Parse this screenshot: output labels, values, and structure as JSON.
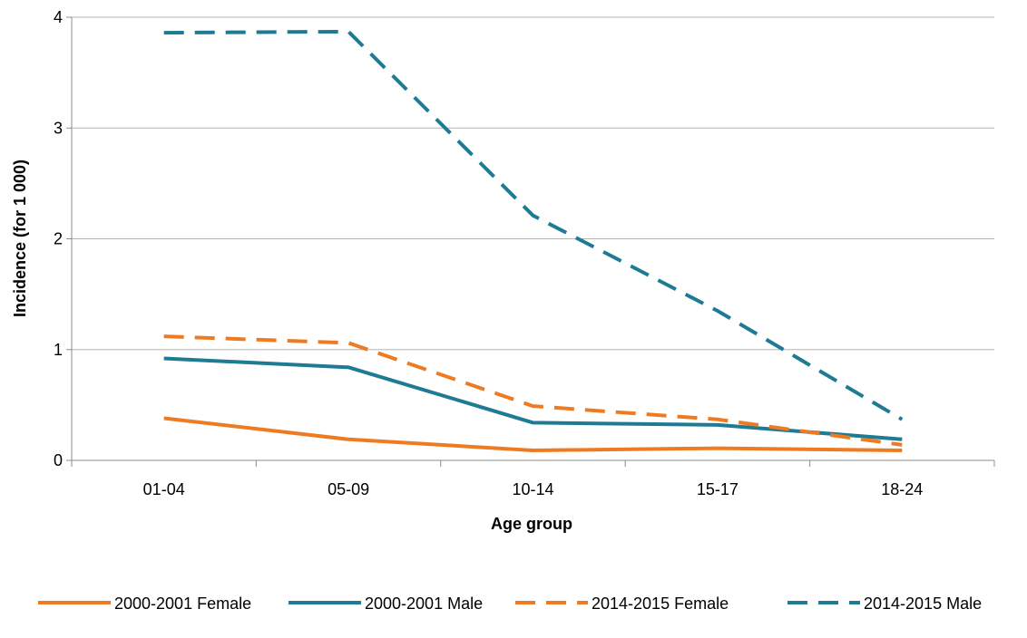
{
  "chart_data": {
    "type": "line",
    "title": "",
    "xlabel": "Age group",
    "ylabel": "Incidence (for 1 000)",
    "categories": [
      "01-04",
      "05-09",
      "10-14",
      "15-17",
      "18-24"
    ],
    "ylim": [
      0,
      4
    ],
    "yticks": [
      0,
      1,
      2,
      3,
      4
    ],
    "grid": "horizontal",
    "legend_position": "bottom",
    "series": [
      {
        "name": "2000-2001 Female",
        "values": [
          0.38,
          0.19,
          0.09,
          0.11,
          0.09
        ],
        "color": "#ee7b22",
        "dash": "solid"
      },
      {
        "name": "2000-2001 Male",
        "values": [
          0.92,
          0.84,
          0.34,
          0.32,
          0.19
        ],
        "color": "#1d7b93",
        "dash": "solid"
      },
      {
        "name": "2014-2015 Female",
        "values": [
          1.12,
          1.06,
          0.49,
          0.37,
          0.14
        ],
        "color": "#ee7b22",
        "dash": "dashed"
      },
      {
        "name": "2014-2015 Male",
        "values": [
          3.86,
          3.87,
          2.21,
          1.35,
          0.37
        ],
        "color": "#1d7b93",
        "dash": "dashed"
      }
    ]
  }
}
